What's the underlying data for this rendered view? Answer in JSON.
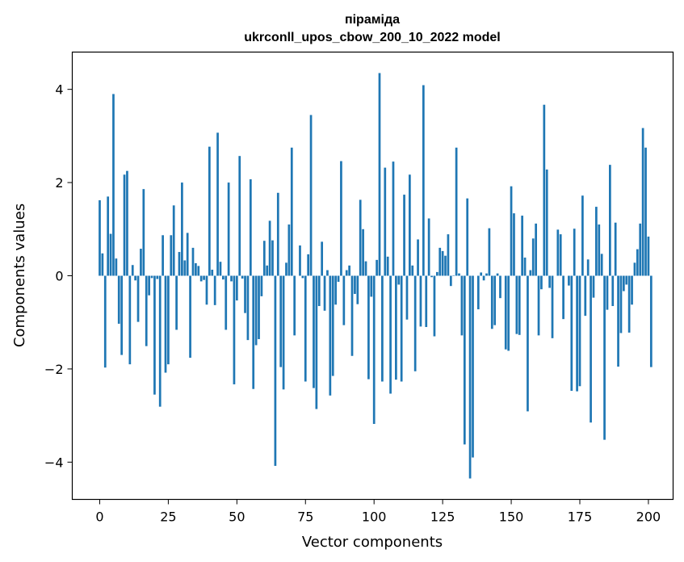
{
  "chart_data": {
    "type": "bar",
    "title": "піраміда",
    "subtitle": "ukrconll_upos_cbow_200_10_2022 model",
    "xlabel": "Vector components",
    "ylabel": "Components values",
    "xlim": [
      -10,
      209
    ],
    "ylim": [
      -4.8,
      4.8
    ],
    "x_ticks": [
      0,
      25,
      50,
      75,
      100,
      125,
      150,
      175,
      200
    ],
    "y_ticks": [
      -4,
      -2,
      0,
      2,
      4
    ],
    "x_tick_labels": [
      "0",
      "25",
      "50",
      "75",
      "100",
      "125",
      "150",
      "175",
      "200"
    ],
    "y_tick_labels": [
      "−4",
      "−2",
      "0",
      "2",
      "4"
    ],
    "grid": false,
    "legend": "none",
    "bar_color": "#1f77b4",
    "values": [
      1.62,
      0.48,
      -1.97,
      1.7,
      0.9,
      3.9,
      0.37,
      -1.03,
      -1.7,
      2.17,
      2.25,
      -1.9,
      0.23,
      -0.1,
      -0.99,
      0.58,
      1.86,
      -1.51,
      -0.42,
      -0.05,
      -2.55,
      -0.07,
      -2.81,
      0.87,
      -2.08,
      -1.9,
      0.87,
      1.51,
      -1.16,
      0.51,
      2.0,
      0.33,
      0.92,
      -1.76,
      0.6,
      0.27,
      0.21,
      -0.12,
      -0.09,
      -0.62,
      2.77,
      0.13,
      -0.63,
      3.07,
      0.3,
      -0.08,
      -1.16,
      2.0,
      -0.12,
      -2.33,
      -0.53,
      2.57,
      -0.06,
      -0.8,
      -1.38,
      2.07,
      -2.43,
      -1.49,
      -1.36,
      -0.44,
      0.75,
      0.22,
      1.18,
      0.76,
      -4.08,
      1.78,
      -1.96,
      -2.44,
      0.28,
      1.1,
      2.75,
      -1.28,
      0.0,
      0.65,
      -0.05,
      -2.27,
      0.46,
      3.45,
      -2.41,
      -2.86,
      -0.65,
      0.73,
      -0.75,
      0.12,
      -2.57,
      -2.15,
      -0.62,
      -0.13,
      2.46,
      -1.06,
      0.12,
      0.22,
      -1.72,
      -0.39,
      -0.61,
      1.63,
      1.0,
      0.31,
      -2.22,
      -0.45,
      -3.18,
      0.34,
      4.35,
      -2.27,
      2.32,
      0.41,
      -2.53,
      2.45,
      -2.23,
      -0.19,
      -2.27,
      1.74,
      -0.94,
      2.17,
      0.22,
      -2.05,
      0.78,
      -1.09,
      4.09,
      -1.1,
      1.23,
      -0.03,
      -1.3,
      0.08,
      0.6,
      0.53,
      0.43,
      0.89,
      -0.22,
      0.01,
      2.75,
      0.05,
      -1.28,
      -3.62,
      1.66,
      -4.35,
      -3.9,
      0.0,
      -0.72,
      0.07,
      -0.1,
      0.05,
      1.02,
      -1.14,
      -1.06,
      0.05,
      -0.48,
      0.0,
      -1.58,
      -1.61,
      1.92,
      1.34,
      -1.25,
      -1.27,
      1.29,
      0.39,
      -2.91,
      0.12,
      0.8,
      1.12,
      -1.28,
      -0.29,
      3.67,
      2.28,
      -0.26,
      -1.34,
      0.0,
      0.99,
      0.89,
      -0.93,
      0.0,
      -0.21,
      -2.47,
      1.01,
      -2.48,
      -2.37,
      1.72,
      -0.86,
      0.35,
      -3.15,
      -0.47,
      1.48,
      1.1,
      0.47,
      -3.52,
      -0.73,
      2.38,
      -0.65,
      1.14,
      -1.95,
      -1.23,
      -0.33,
      -0.19,
      -1.22,
      -0.62,
      0.28,
      0.57,
      1.12,
      3.17,
      2.75,
      0.84,
      -1.96
    ]
  }
}
